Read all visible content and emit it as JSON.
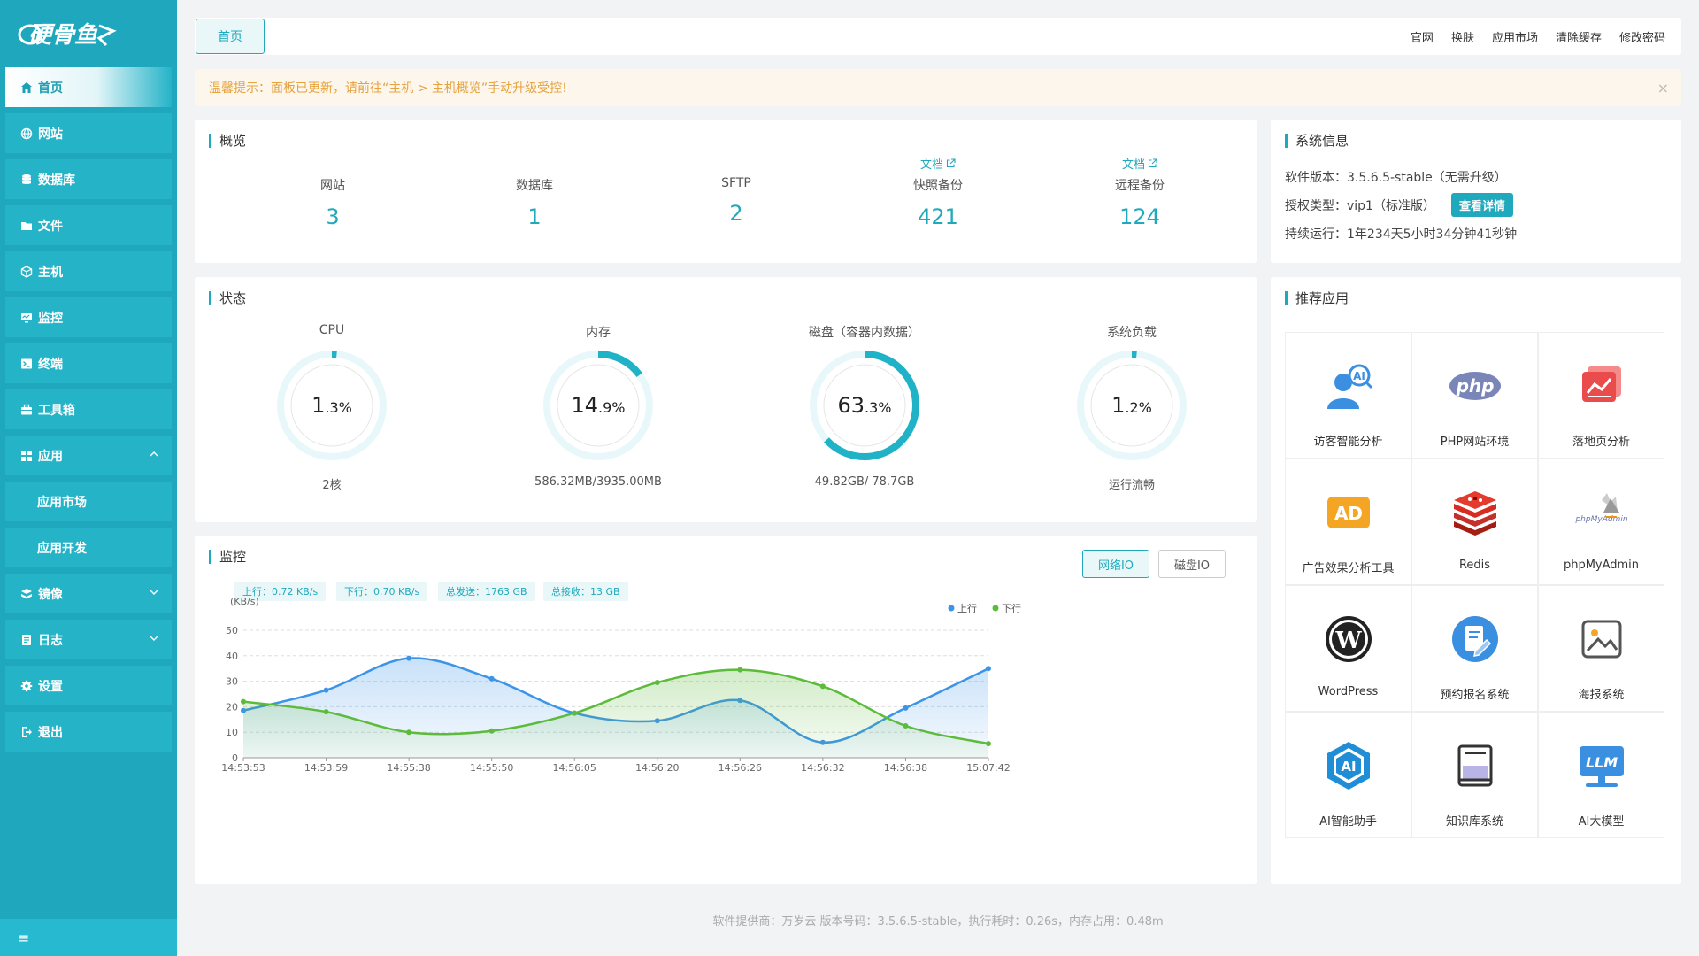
{
  "sidebar": {
    "items": [
      {
        "label": "首页"
      },
      {
        "label": "网站"
      },
      {
        "label": "数据库"
      },
      {
        "label": "文件"
      },
      {
        "label": "主机"
      },
      {
        "label": "监控"
      },
      {
        "label": "终端"
      },
      {
        "label": "工具箱"
      },
      {
        "label": "应用"
      },
      {
        "label": "应用市场"
      },
      {
        "label": "应用开发"
      },
      {
        "label": "镜像"
      },
      {
        "label": "日志"
      },
      {
        "label": "设置"
      },
      {
        "label": "退出"
      }
    ],
    "collapse_glyph": "≡"
  },
  "topbar": {
    "tab": "首页",
    "links": [
      "官网",
      "换肤",
      "应用市场",
      "清除缓存",
      "修改密码"
    ]
  },
  "notice": {
    "text": "温馨提示：面板已更新，请前往“主机 > 主机概览”手动升级受控!",
    "close": "×"
  },
  "overview": {
    "title": "概览",
    "doc_label": "文档",
    "items": [
      {
        "label": "网站",
        "value": "3"
      },
      {
        "label": "数据库",
        "value": "1"
      },
      {
        "label": "SFTP",
        "value": "2"
      },
      {
        "label": "快照备份",
        "value": "421"
      },
      {
        "label": "远程备份",
        "value": "124"
      }
    ]
  },
  "status": {
    "title": "状态",
    "gauges": [
      {
        "label": "CPU",
        "int": "1",
        "dec": ".3",
        "unit": "%",
        "percent": 1.3,
        "sub": "2核"
      },
      {
        "label": "内存",
        "int": "14",
        "dec": ".9",
        "unit": "%",
        "percent": 14.9,
        "sub": "586.32MB/3935.00MB"
      },
      {
        "label": "磁盘（容器内数据）",
        "int": "63",
        "dec": ".3",
        "unit": "%",
        "percent": 63.3,
        "sub": "49.82GB/ 78.7GB"
      },
      {
        "label": "系统负载",
        "int": "1",
        "dec": ".2",
        "unit": "%",
        "percent": 1.2,
        "sub": "运行流畅"
      }
    ]
  },
  "monitor": {
    "title": "监控",
    "btn_net": "网络IO",
    "btn_disk": "磁盘IO",
    "stats": [
      "上行：0.72 KB/s",
      "下行：0.70 KB/s",
      "总发送：1763 GB",
      "总接收：13 GB"
    ]
  },
  "chart_data": {
    "type": "area",
    "ylabel": "(KB/s)",
    "ylim": [
      0,
      50
    ],
    "yticks": [
      0,
      10,
      20,
      30,
      40,
      50
    ],
    "categories": [
      "14:53:53",
      "14:53:59",
      "14:55:38",
      "14:55:50",
      "14:56:05",
      "14:56:20",
      "14:56:26",
      "14:56:32",
      "14:56:38",
      "15:07:42"
    ],
    "series": [
      {
        "name": "上行",
        "color": "#3b94e8",
        "values": [
          18.5,
          26.5,
          39,
          31,
          17.5,
          14.5,
          22.5,
          6,
          19.5,
          35
        ]
      },
      {
        "name": "下行",
        "color": "#5dbb3c",
        "values": [
          22,
          18,
          10,
          10.5,
          17.5,
          29.5,
          34.5,
          28,
          12.5,
          5.5
        ]
      }
    ],
    "grid": true,
    "legend": "top-right"
  },
  "sysinfo": {
    "title": "系统信息",
    "version": "软件版本：3.5.6.5-stable（无需升级）",
    "license": "授权类型：vip1（标准版）",
    "license_btn": "查看详情",
    "uptime": "持续运行：1年234天5小时34分钟41秒钟"
  },
  "apps": {
    "title": "推荐应用",
    "items": [
      {
        "name": "访客智能分析",
        "icon": "visitor-ai-icon"
      },
      {
        "name": "PHP网站环境",
        "icon": "php-icon"
      },
      {
        "name": "落地页分析",
        "icon": "landing-chart-icon"
      },
      {
        "name": "广告效果分析工具",
        "icon": "ad-icon"
      },
      {
        "name": "Redis",
        "icon": "redis-icon"
      },
      {
        "name": "phpMyAdmin",
        "icon": "phpmyadmin-icon"
      },
      {
        "name": "WordPress",
        "icon": "wordpress-icon"
      },
      {
        "name": "预约报名系统",
        "icon": "booking-icon"
      },
      {
        "name": "海报系统",
        "icon": "poster-icon"
      },
      {
        "name": "AI智能助手",
        "icon": "ai-assistant-icon"
      },
      {
        "name": "知识库系统",
        "icon": "knowledge-book-icon"
      },
      {
        "name": "AI大模型",
        "icon": "llm-icon"
      }
    ]
  },
  "footer": {
    "text": "软件提供商：万岁云   版本号码：3.5.6.5-stable，执行耗时：0.26s，内存占用：0.48m"
  },
  "colors": {
    "accent": "#20a9bd",
    "sidebar": "#1ea7bd"
  }
}
